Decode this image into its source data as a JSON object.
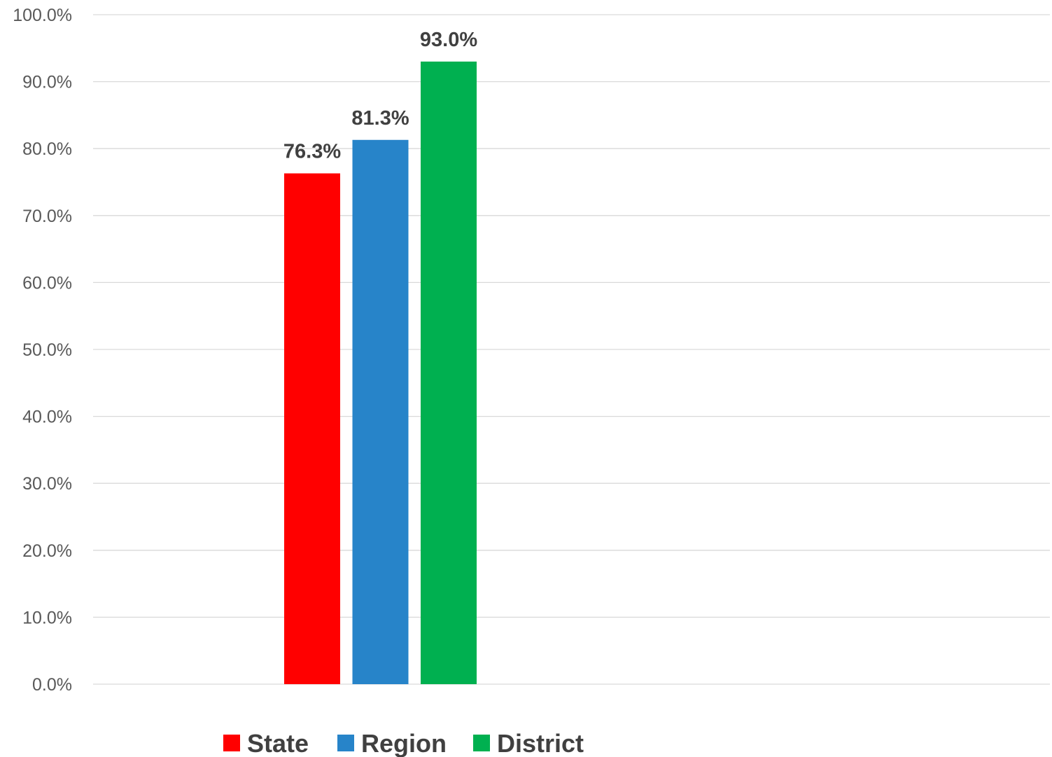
{
  "chart_data": {
    "type": "bar",
    "title": "",
    "xlabel": "",
    "ylabel": "",
    "ylim": [
      0,
      100
    ],
    "y_ticks": [
      "0.0%",
      "10.0%",
      "20.0%",
      "30.0%",
      "40.0%",
      "50.0%",
      "60.0%",
      "70.0%",
      "80.0%",
      "90.0%",
      "100.0%"
    ],
    "grid": true,
    "legend_position": "bottom",
    "categories": [
      ""
    ],
    "series": [
      {
        "name": "State",
        "values": [
          76.3
        ],
        "label": "76.3%",
        "color": "#ff0000"
      },
      {
        "name": "Region",
        "values": [
          81.3
        ],
        "label": "81.3%",
        "color": "#2784c9"
      },
      {
        "name": "District",
        "values": [
          93.0
        ],
        "label": "93.0%",
        "color": "#00b050"
      }
    ]
  }
}
